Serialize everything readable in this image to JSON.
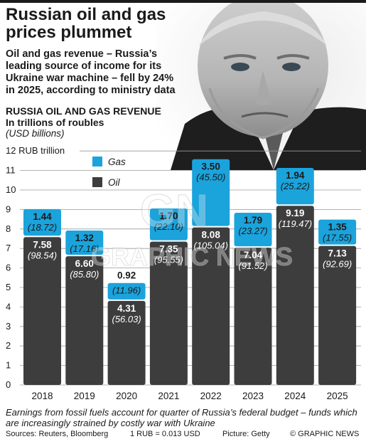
{
  "header": {
    "title": "Russian oil and gas prices plummet",
    "subtitle": "Oil and gas revenue – Russia’s leading source of income for its Ukraine war machine – fell by 24% in 2025, according to ministry data"
  },
  "chart_data": {
    "type": "bar",
    "stacked": true,
    "title": "RUSSIA OIL AND GAS REVENUE",
    "subtitle": "In trillions of roubles",
    "unit_note": "(USD billions)",
    "y_axis_top_label": "12 RUB trillion",
    "ylim": [
      0,
      12
    ],
    "y_ticks": [
      "0",
      "1",
      "2",
      "3",
      "4",
      "5",
      "6",
      "7",
      "8",
      "9",
      "10",
      "11"
    ],
    "grid": true,
    "categories": [
      "2018",
      "2019",
      "2020",
      "2021",
      "2022",
      "2023",
      "2024",
      "2025"
    ],
    "series": [
      {
        "name": "Oil",
        "color": "#3d3d3d",
        "values": [
          7.58,
          6.6,
          4.31,
          7.35,
          8.08,
          7.04,
          9.19,
          7.13
        ],
        "value_labels": [
          "7.58",
          "6.60",
          "4.31",
          "7.35",
          "8.08",
          "7.04",
          "9.19",
          "7.13"
        ],
        "usd_labels": [
          "(98.54)",
          "(85.80)",
          "(56.03)",
          "(95.55)",
          "(105.04)",
          "(91.52)",
          "(119.47)",
          "(92.69)"
        ]
      },
      {
        "name": "Gas",
        "color": "#1ba3dc",
        "values": [
          1.44,
          1.32,
          0.92,
          1.7,
          3.5,
          1.79,
          1.94,
          1.35
        ],
        "value_labels": [
          "1.44",
          "1.32",
          "0.92",
          "1.70",
          "3.50",
          "1.79",
          "1.94",
          "1.35"
        ],
        "usd_labels": [
          "(18.72)",
          "(17.16)",
          "(11.96)",
          "(22.10)",
          "(45.50)",
          "(23.27)",
          "(25.22)",
          "(17.55)"
        ]
      }
    ],
    "legend": {
      "placement": "top-left",
      "items": [
        "Gas",
        "Oil"
      ]
    }
  },
  "colors": {
    "oil": "#3d3d3d",
    "gas": "#1ba3dc",
    "grid": "#9a9a9a",
    "text": "#1a1a1a"
  },
  "watermark": "GRAPHIC NEWS",
  "watermark_logo": "GN",
  "footer": {
    "note": "Earnings from fossil fuels account for quarter of Russia’s federal budget – funds which are increasingly strained by costly war with Ukraine",
    "sources": "Sources: Reuters, Bloomberg",
    "rate": "1 RUB = 0.013 USD",
    "picture": "Picture: Getty",
    "credit": "© GRAPHIC NEWS"
  }
}
